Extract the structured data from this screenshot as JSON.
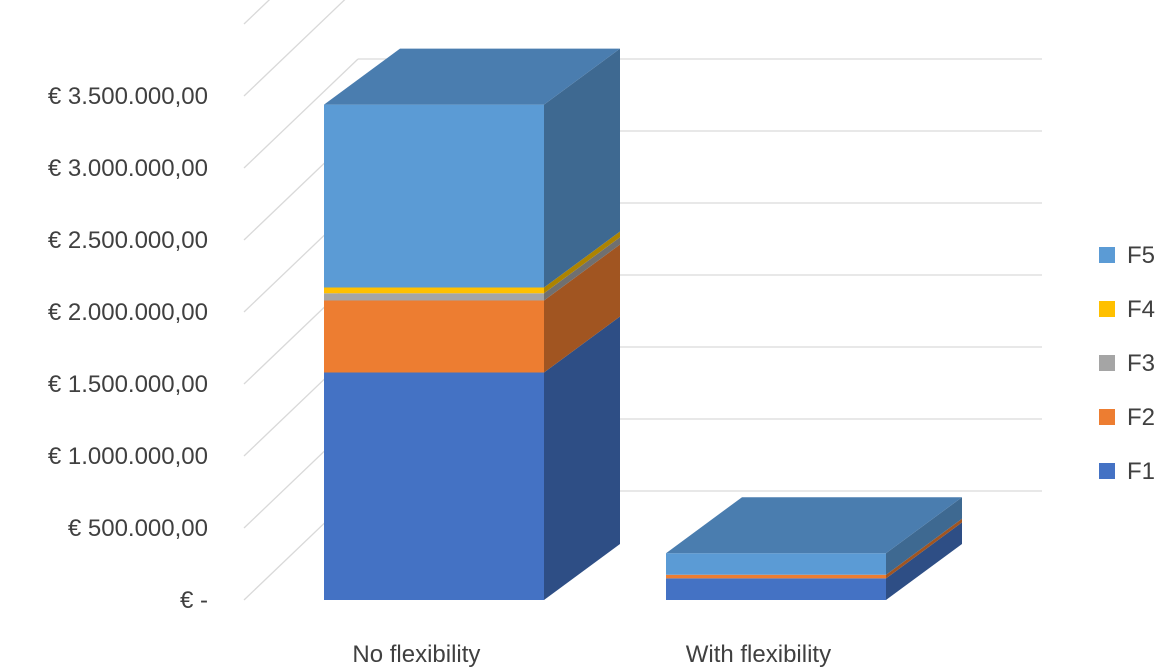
{
  "chart_data": {
    "type": "bar",
    "stacked": true,
    "three_d": true,
    "categories": [
      "No flexibility",
      "With flexibility"
    ],
    "series": [
      {
        "name": "F1",
        "color": "#4472C4",
        "values": [
          1580000,
          150000
        ]
      },
      {
        "name": "F2",
        "color": "#ED7D31",
        "values": [
          500000,
          25000
        ]
      },
      {
        "name": "F3",
        "color": "#A5A5A5",
        "values": [
          50000,
          0
        ]
      },
      {
        "name": "F4",
        "color": "#FFC000",
        "values": [
          40000,
          0
        ]
      },
      {
        "name": "F5",
        "color": "#5B9BD5",
        "values": [
          1270000,
          150000
        ]
      }
    ],
    "ylim": [
      0,
      3500000
    ],
    "y_ticks": [
      {
        "value": 0,
        "label": "€ -"
      },
      {
        "value": 500000,
        "label": "€ 500.000,00"
      },
      {
        "value": 1000000,
        "label": "€ 1.000.000,00"
      },
      {
        "value": 1500000,
        "label": "€ 1.500.000,00"
      },
      {
        "value": 2000000,
        "label": "€ 2.000.000,00"
      },
      {
        "value": 2500000,
        "label": "€ 2.500.000,00"
      },
      {
        "value": 3000000,
        "label": "€ 3.000.000,00"
      },
      {
        "value": 3500000,
        "label": "€ 3.500.000,00"
      }
    ],
    "grid": true,
    "legend_position": "right",
    "legend_order": [
      "F5",
      "F4",
      "F3",
      "F2",
      "F1"
    ]
  }
}
